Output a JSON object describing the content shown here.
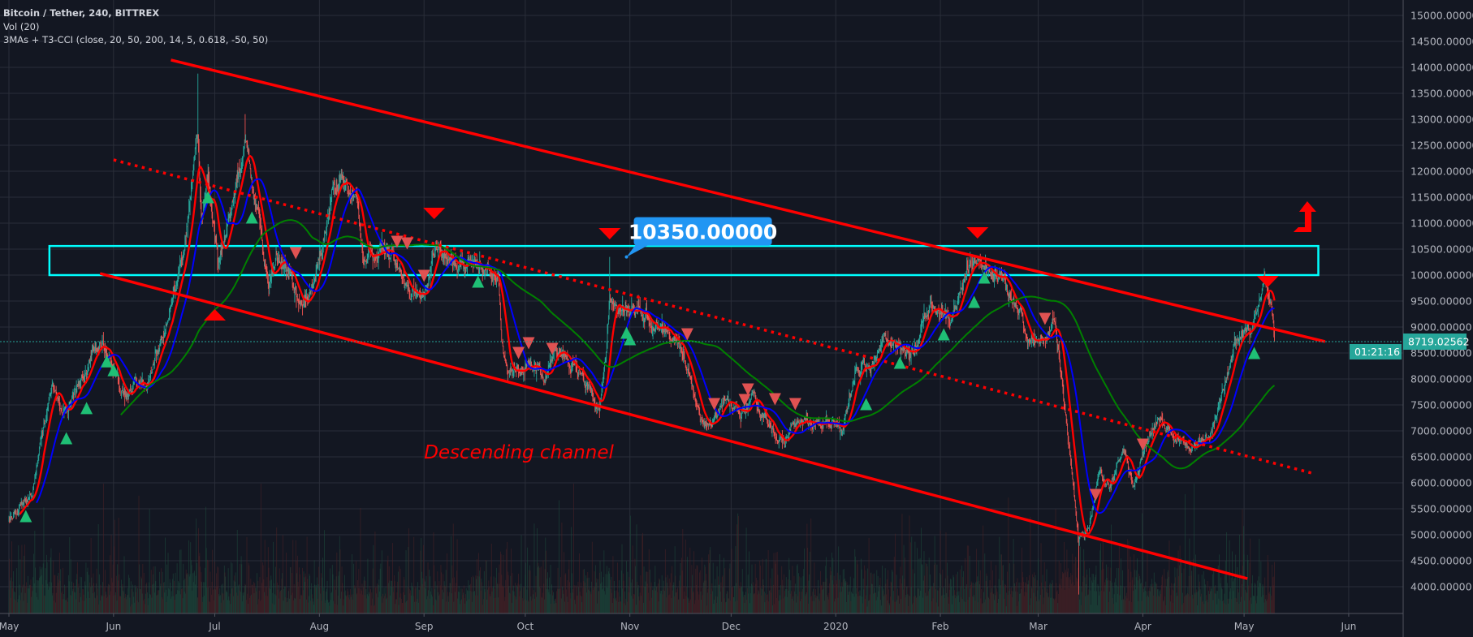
{
  "legend": {
    "symbol": "Bitcoin / Tether, 240, BITTREX",
    "volume": "Vol (20)",
    "indicator": "3MAs + T3-CCI (close, 20, 50, 200, 14, 5, 0.618, -50, 50)"
  },
  "colors": {
    "background": "#131722",
    "grid": "#2a2e39",
    "axis_text": "#b2b5be",
    "up_candle": "#26a69a",
    "down_candle": "#ef5350",
    "ma_fast": "#ff0000",
    "ma_mid": "#0000ff",
    "ma_slow": "#008000",
    "trendline": "#ff0000",
    "zone": "#00ffff",
    "callout": "#2196f3",
    "buy_signal": "#1fbf75",
    "sell_signal": "#e05252",
    "price_tag": "#26a69a"
  },
  "price_tag": {
    "last_price": "8719.02562",
    "countdown": "01:21:16"
  },
  "chart_data": {
    "type": "candlestick",
    "timeframe_minutes": 240,
    "ylim": [
      3500,
      15200
    ],
    "xlim": [
      "2019-04-29",
      "2020-06-25"
    ],
    "scale": "linear",
    "grid": true,
    "y_ticks": [
      "15000.00000",
      "14500.00000",
      "14000.00000",
      "13500.00000",
      "13000.00000",
      "12500.00000",
      "12000.00000",
      "11500.00000",
      "11000.00000",
      "10500.00000",
      "10000.00000",
      "9500.00000",
      "9000.00000",
      "8500.00000",
      "8000.00000",
      "7500.00000",
      "7000.00000",
      "6500.00000",
      "6000.00000",
      "5500.00000",
      "5000.00000",
      "4500.00000",
      "4000.00000"
    ],
    "y_tick_values": [
      15000,
      14500,
      14000,
      13500,
      13000,
      12500,
      12000,
      11500,
      11000,
      10500,
      10000,
      9500,
      9000,
      8500,
      8000,
      7500,
      7000,
      6500,
      6000,
      5500,
      5000,
      4500,
      4000
    ],
    "x_ticks": [
      {
        "label": "May",
        "date": "2019-05-01"
      },
      {
        "label": "Jun",
        "date": "2019-06-01"
      },
      {
        "label": "Jul",
        "date": "2019-07-01"
      },
      {
        "label": "Aug",
        "date": "2019-08-01"
      },
      {
        "label": "Sep",
        "date": "2019-09-01"
      },
      {
        "label": "Oct",
        "date": "2019-10-01"
      },
      {
        "label": "Nov",
        "date": "2019-11-01"
      },
      {
        "label": "Dec",
        "date": "2019-12-01"
      },
      {
        "label": "2020",
        "date": "2020-01-01"
      },
      {
        "label": "Feb",
        "date": "2020-02-01"
      },
      {
        "label": "Mar",
        "date": "2020-03-01"
      },
      {
        "label": "Apr",
        "date": "2020-04-01"
      },
      {
        "label": "May",
        "date": "2020-05-01"
      },
      {
        "label": "Jun",
        "date": "2020-06-01"
      }
    ],
    "close_path": [
      [
        "2019-05-01",
        5300
      ],
      [
        "2019-05-08",
        5800
      ],
      [
        "2019-05-11",
        7000
      ],
      [
        "2019-05-14",
        8000
      ],
      [
        "2019-05-17",
        7200
      ],
      [
        "2019-05-22",
        7900
      ],
      [
        "2019-05-27",
        8700
      ],
      [
        "2019-05-30",
        8600
      ],
      [
        "2019-06-04",
        7700
      ],
      [
        "2019-06-11",
        8000
      ],
      [
        "2019-06-16",
        8900
      ],
      [
        "2019-06-22",
        10500
      ],
      [
        "2019-06-26",
        12800
      ],
      [
        "2019-06-27",
        11200
      ],
      [
        "2019-06-29",
        11900
      ],
      [
        "2019-07-02",
        10200
      ],
      [
        "2019-07-05",
        11000
      ],
      [
        "2019-07-09",
        12300
      ],
      [
        "2019-07-10",
        12500
      ],
      [
        "2019-07-13",
        11400
      ],
      [
        "2019-07-17",
        9800
      ],
      [
        "2019-07-19",
        10500
      ],
      [
        "2019-07-23",
        9900
      ],
      [
        "2019-07-27",
        9500
      ],
      [
        "2019-07-30",
        9800
      ],
      [
        "2019-08-05",
        11600
      ],
      [
        "2019-08-08",
        11800
      ],
      [
        "2019-08-12",
        11400
      ],
      [
        "2019-08-14",
        10200
      ],
      [
        "2019-08-20",
        10600
      ],
      [
        "2019-08-23",
        10300
      ],
      [
        "2019-08-28",
        9600
      ],
      [
        "2019-09-01",
        9700
      ],
      [
        "2019-09-05",
        10600
      ],
      [
        "2019-09-10",
        10200
      ],
      [
        "2019-09-18",
        10200
      ],
      [
        "2019-09-23",
        9900
      ],
      [
        "2019-09-24",
        8600
      ],
      [
        "2019-09-26",
        8000
      ],
      [
        "2019-10-01",
        8300
      ],
      [
        "2019-10-07",
        8100
      ],
      [
        "2019-10-10",
        8600
      ],
      [
        "2019-10-18",
        8100
      ],
      [
        "2019-10-23",
        7400
      ],
      [
        "2019-10-25",
        8600
      ],
      [
        "2019-10-26",
        9500
      ],
      [
        "2019-10-28",
        9300
      ],
      [
        "2019-11-05",
        9300
      ],
      [
        "2019-11-10",
        8900
      ],
      [
        "2019-11-14",
        8700
      ],
      [
        "2019-11-18",
        8300
      ],
      [
        "2019-11-22",
        7200
      ],
      [
        "2019-11-25",
        7100
      ],
      [
        "2019-11-29",
        7700
      ],
      [
        "2019-12-04",
        7300
      ],
      [
        "2019-12-08",
        7600
      ],
      [
        "2019-12-12",
        7200
      ],
      [
        "2019-12-17",
        6700
      ],
      [
        "2019-12-19",
        7200
      ],
      [
        "2019-12-25",
        7200
      ],
      [
        "2020-01-01",
        7200
      ],
      [
        "2020-01-03",
        6950
      ],
      [
        "2020-01-07",
        8200
      ],
      [
        "2020-01-12",
        8200
      ],
      [
        "2020-01-15",
        8800
      ],
      [
        "2020-01-20",
        8600
      ],
      [
        "2020-01-23",
        8400
      ],
      [
        "2020-01-29",
        9400
      ],
      [
        "2020-02-04",
        9100
      ],
      [
        "2020-02-09",
        10100
      ],
      [
        "2020-02-13",
        10400
      ],
      [
        "2020-02-16",
        10000
      ],
      [
        "2020-02-19",
        10150
      ],
      [
        "2020-02-21",
        9600
      ],
      [
        "2020-02-25",
        9300
      ],
      [
        "2020-02-27",
        8700
      ],
      [
        "2020-03-03",
        8850
      ],
      [
        "2020-03-06",
        9100
      ],
      [
        "2020-03-08",
        8100
      ],
      [
        "2020-03-12",
        5500
      ],
      [
        "2020-03-13",
        4900
      ],
      [
        "2020-03-16",
        5100
      ],
      [
        "2020-03-19",
        6200
      ],
      [
        "2020-03-22",
        5900
      ],
      [
        "2020-03-26",
        6700
      ],
      [
        "2020-03-29",
        5900
      ],
      [
        "2020-04-02",
        6800
      ],
      [
        "2020-04-06",
        7300
      ],
      [
        "2020-04-10",
        6900
      ],
      [
        "2020-04-15",
        6700
      ],
      [
        "2020-04-21",
        6900
      ],
      [
        "2020-04-23",
        7500
      ],
      [
        "2020-04-29",
        8800
      ],
      [
        "2020-05-03",
        8900
      ],
      [
        "2020-05-07",
        9900
      ],
      [
        "2020-05-09",
        9600
      ],
      [
        "2020-05-10",
        8719
      ]
    ],
    "extremes": [
      {
        "date": "2019-06-26",
        "high": 13880
      },
      {
        "date": "2019-07-10",
        "high": 13100
      },
      {
        "date": "2019-10-26",
        "high": 10350
      },
      {
        "date": "2020-03-13",
        "low": 3850
      }
    ],
    "moving_averages": [
      {
        "name": "MA 20",
        "period": 20,
        "color": "#ff0000"
      },
      {
        "name": "MA 50",
        "period": 50,
        "color": "#0000ff"
      },
      {
        "name": "MA 200",
        "period": 200,
        "color": "#008000"
      }
    ],
    "drawings": {
      "upper_channel": {
        "from": [
          "2019-06-18",
          14141
        ],
        "to": [
          "2020-05-25",
          8719
        ]
      },
      "lower_channel": {
        "from": [
          "2019-05-28",
          10031
        ],
        "to": [
          "2020-05-02",
          4156
        ]
      },
      "dotted_trendline": {
        "from": [
          "2019-06-01",
          12219
        ],
        "to": [
          "2020-05-22",
          6172
        ]
      },
      "resistance_zone": {
        "from_date": "2019-05-13",
        "to_date": "2020-05-23",
        "low": 10000,
        "high": 10560
      },
      "callout": {
        "text": "10350.00000",
        "date": "2019-10-31",
        "price": 10350
      },
      "channel_text": {
        "text": "Descending channel",
        "date": "2019-09-01",
        "price": 6469
      },
      "up_arrow": {
        "date": "2020-05-19",
        "price_low": 10828,
        "price_high": 11422
      }
    },
    "signals": {
      "buy": [
        [
          "2019-05-06",
          5360
        ],
        [
          "2019-05-18",
          6860
        ],
        [
          "2019-05-24",
          7440
        ],
        [
          "2019-05-30",
          8340
        ],
        [
          "2019-06-01",
          8170
        ],
        [
          "2019-06-29",
          11500
        ],
        [
          "2019-07-12",
          11110
        ],
        [
          "2019-09-17",
          9875
        ],
        [
          "2019-10-31",
          8890
        ],
        [
          "2019-11-01",
          8766
        ],
        [
          "2020-01-10",
          7516
        ],
        [
          "2020-01-20",
          8313
        ],
        [
          "2020-02-02",
          8860
        ],
        [
          "2020-02-11",
          9484
        ],
        [
          "2020-02-14",
          9953
        ],
        [
          "2020-05-04",
          8500
        ]
      ],
      "sell": [
        [
          "2019-07-25",
          10422
        ],
        [
          "2019-08-24",
          10640
        ],
        [
          "2019-08-27",
          10610
        ],
        [
          "2019-09-01",
          9984
        ],
        [
          "2019-09-29",
          8500
        ],
        [
          "2019-10-02",
          8688
        ],
        [
          "2019-10-09",
          8578
        ],
        [
          "2019-11-18",
          8859
        ],
        [
          "2019-11-26",
          7516
        ],
        [
          "2019-12-06",
          7797
        ],
        [
          "2019-12-05",
          7594
        ],
        [
          "2019-12-14",
          7609
        ],
        [
          "2019-12-20",
          7516
        ],
        [
          "2020-03-03",
          9156
        ],
        [
          "2020-03-18",
          5766
        ],
        [
          "2020-04-01",
          6734
        ]
      ],
      "major_sell": [
        [
          "2019-09-04",
          11188
        ],
        [
          "2019-10-26",
          10797
        ],
        [
          "2020-02-12",
          10812
        ],
        [
          "2020-05-08",
          9875
        ]
      ],
      "major_buy": [
        [
          "2019-07-01",
          9234
        ]
      ]
    }
  }
}
